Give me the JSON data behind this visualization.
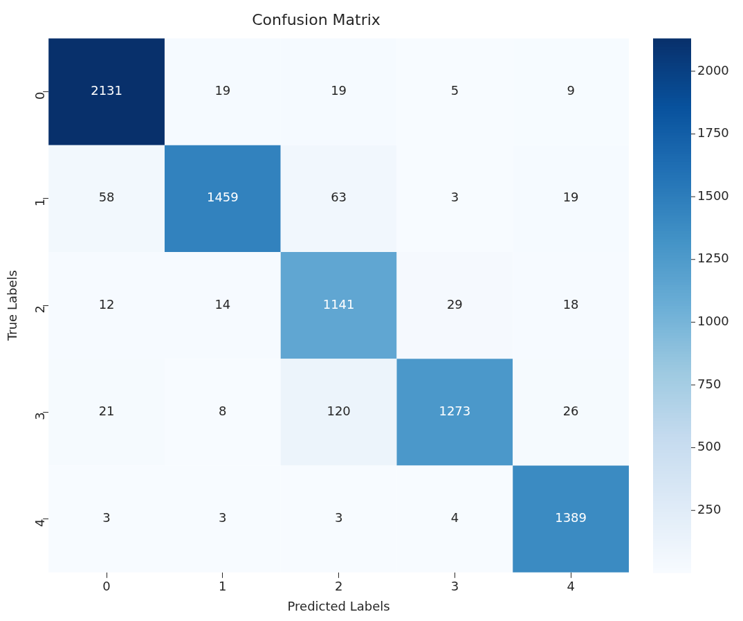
{
  "chart_data": {
    "type": "heatmap",
    "title": "Confusion Matrix",
    "xlabel": "Predicted Labels",
    "ylabel": "True Labels",
    "categories": [
      "0",
      "1",
      "2",
      "3",
      "4"
    ],
    "y_categories": [
      "0",
      "1",
      "2",
      "3",
      "4"
    ],
    "cells": [
      [
        2131,
        19,
        19,
        5,
        9
      ],
      [
        58,
        1459,
        63,
        3,
        19
      ],
      [
        12,
        14,
        1141,
        29,
        18
      ],
      [
        21,
        8,
        120,
        1273,
        26
      ],
      [
        3,
        3,
        3,
        4,
        1389
      ]
    ],
    "clim": [
      3,
      2131
    ],
    "cticks": [
      250,
      500,
      750,
      1000,
      1250,
      1500,
      1750,
      2000
    ],
    "data_labels": true
  }
}
